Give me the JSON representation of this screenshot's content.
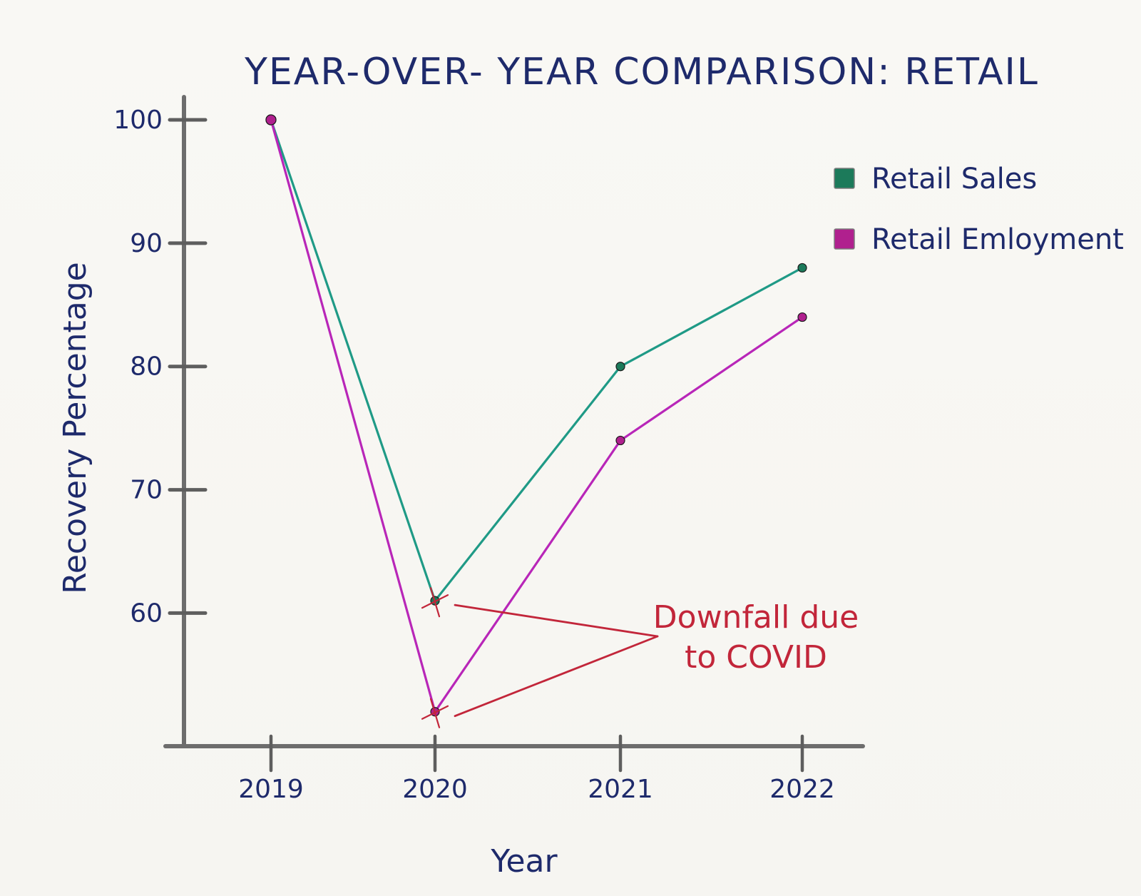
{
  "chart_data": {
    "type": "line",
    "title": "YEAR-OVER- YEAR COMPARISON: RETAIL",
    "xlabel": "Year",
    "ylabel": "Recovery Percentage",
    "categories": [
      "2019",
      "2020",
      "2021",
      "2022"
    ],
    "yticks": [
      60,
      70,
      80,
      90,
      100
    ],
    "ylim": [
      51,
      100
    ],
    "grid": false,
    "legend_position": "top-right",
    "series": [
      {
        "name": "Retail Sales",
        "color": "#1f9a86",
        "marker_color": "#1c7a5a",
        "values": [
          100,
          61,
          80,
          88
        ]
      },
      {
        "name": "Retail Emloyment",
        "color": "#b826b8",
        "marker_color": "#b0208e",
        "values": [
          100,
          52,
          74,
          84
        ]
      }
    ],
    "annotation": {
      "lines": [
        "Downfall due",
        "to COVID"
      ],
      "color": "#c2263a",
      "targets": [
        {
          "series": 0,
          "category": 1
        },
        {
          "series": 1,
          "category": 1
        }
      ]
    }
  }
}
